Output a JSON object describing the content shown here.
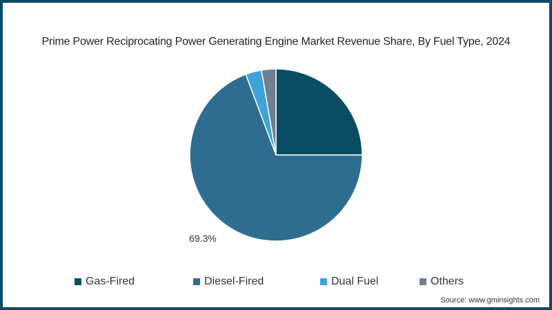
{
  "chart_data": {
    "type": "pie",
    "title": "Prime Power Reciprocating Power Generating Engine Market Revenue Share, By Fuel Type, 2024",
    "categories": [
      "Gas-Fired",
      "Diesel-Fired",
      "Dual Fuel",
      "Others"
    ],
    "values": [
      25.0,
      69.3,
      3.0,
      2.7
    ],
    "colors": [
      "#0a4d63",
      "#2e6d90",
      "#3ea4d8",
      "#6e8092"
    ],
    "data_labels": [
      {
        "category": "Diesel-Fired",
        "text": "69.3%"
      }
    ],
    "legend_position": "bottom",
    "start_angle": "12 o'clock, clockwise"
  },
  "source": "Source: www.gminsights.com",
  "legend": [
    {
      "label": "Gas-Fired",
      "color": "#0a4d63"
    },
    {
      "label": "Diesel-Fired",
      "color": "#2e6d90"
    },
    {
      "label": "Dual Fuel",
      "color": "#3ea4d8"
    },
    {
      "label": "Others",
      "color": "#6e8092"
    }
  ],
  "label_text": "69.3%"
}
